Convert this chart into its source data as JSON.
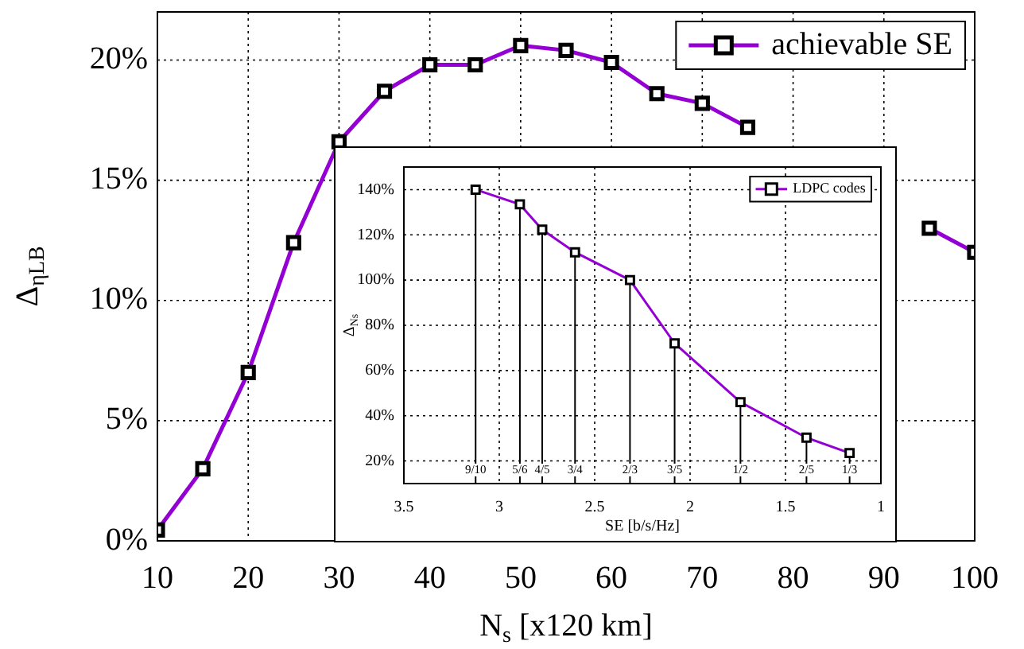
{
  "chart_data": [
    {
      "type": "line",
      "xlabel": "N$_{s}$ [x120 km]",
      "ylabel": "Δ$_{ηLB}$",
      "x": [
        10,
        15,
        20,
        25,
        30,
        35,
        40,
        45,
        50,
        55,
        60,
        65,
        70,
        75,
        80,
        85,
        90,
        95,
        100
      ],
      "series": [
        {
          "name": "achievable SE",
          "color": "#9400d3",
          "values": [
            0.45,
            3.0,
            7.0,
            12.4,
            16.6,
            18.7,
            19.8,
            19.8,
            20.6,
            20.4,
            19.9,
            18.6,
            18.2,
            17.2,
            null,
            null,
            null,
            13.0,
            12.0
          ]
        }
      ],
      "xlim": [
        10,
        100
      ],
      "xticks": [
        10,
        20,
        30,
        40,
        50,
        60,
        70,
        80,
        90,
        100
      ],
      "ylim": [
        0,
        22
      ],
      "yticks": [
        {
          "value": 0,
          "label": "0%"
        },
        {
          "value": 5,
          "label": "5%"
        },
        {
          "value": 10,
          "label": "10%"
        },
        {
          "value": 15,
          "label": "15%"
        },
        {
          "value": 20,
          "label": "20%"
        }
      ],
      "grid": true,
      "legend": "top right",
      "marker": "square",
      "line_style": "solid"
    },
    {
      "type": "line",
      "xlabel": "SE [b/s/Hz]",
      "ylabel": "Δ$_{Ns}$",
      "x": [
        3.124,
        2.892,
        2.775,
        2.603,
        2.315,
        2.081,
        1.736,
        1.39,
        1.164
      ],
      "series": [
        {
          "name": "LDPC codes",
          "color": "#9400d3",
          "values": [
            140,
            133.5,
            122.3,
            112.3,
            100,
            72,
            46,
            30.3,
            23.5
          ]
        }
      ],
      "xlim": [
        3.5,
        1
      ],
      "xticks": [
        3.5,
        3,
        2.5,
        2,
        1.5,
        1
      ],
      "ylim": [
        10,
        150
      ],
      "yticks": [
        {
          "value": 20,
          "label": "20%"
        },
        {
          "value": 40,
          "label": "40%"
        },
        {
          "value": 60,
          "label": "60%"
        },
        {
          "value": 80,
          "label": "80%"
        },
        {
          "value": 100,
          "label": "100%"
        },
        {
          "value": 120,
          "label": "120%"
        },
        {
          "value": 140,
          "label": "140%"
        }
      ],
      "ref_lines": [
        {
          "axis": "x",
          "value": 3.124
        },
        {
          "axis": "x",
          "value": 2.892
        },
        {
          "axis": "x",
          "value": 2.775
        },
        {
          "axis": "x",
          "value": 2.603
        },
        {
          "axis": "x",
          "value": 2.315
        },
        {
          "axis": "x",
          "value": 2.081
        },
        {
          "axis": "x",
          "value": 1.736
        },
        {
          "axis": "x",
          "value": 1.39
        },
        {
          "axis": "x",
          "value": 1.164
        }
      ],
      "annotations": [
        {
          "text": "9/10",
          "x": 3.124,
          "y": 16
        },
        {
          "text": "5/6",
          "x": 2.892,
          "y": 16
        },
        {
          "text": "4/5",
          "x": 2.775,
          "y": 16
        },
        {
          "text": "3/4",
          "x": 2.603,
          "y": 16
        },
        {
          "text": "2/3",
          "x": 2.315,
          "y": 16
        },
        {
          "text": "3/5",
          "x": 2.081,
          "y": 16
        },
        {
          "text": "1/2",
          "x": 1.736,
          "y": 16
        },
        {
          "text": "2/5",
          "x": 1.39,
          "y": 16
        },
        {
          "text": "1/3",
          "x": 1.164,
          "y": 16
        }
      ],
      "grid": true,
      "legend": "top right",
      "marker": "square",
      "line_style": "solid"
    }
  ]
}
